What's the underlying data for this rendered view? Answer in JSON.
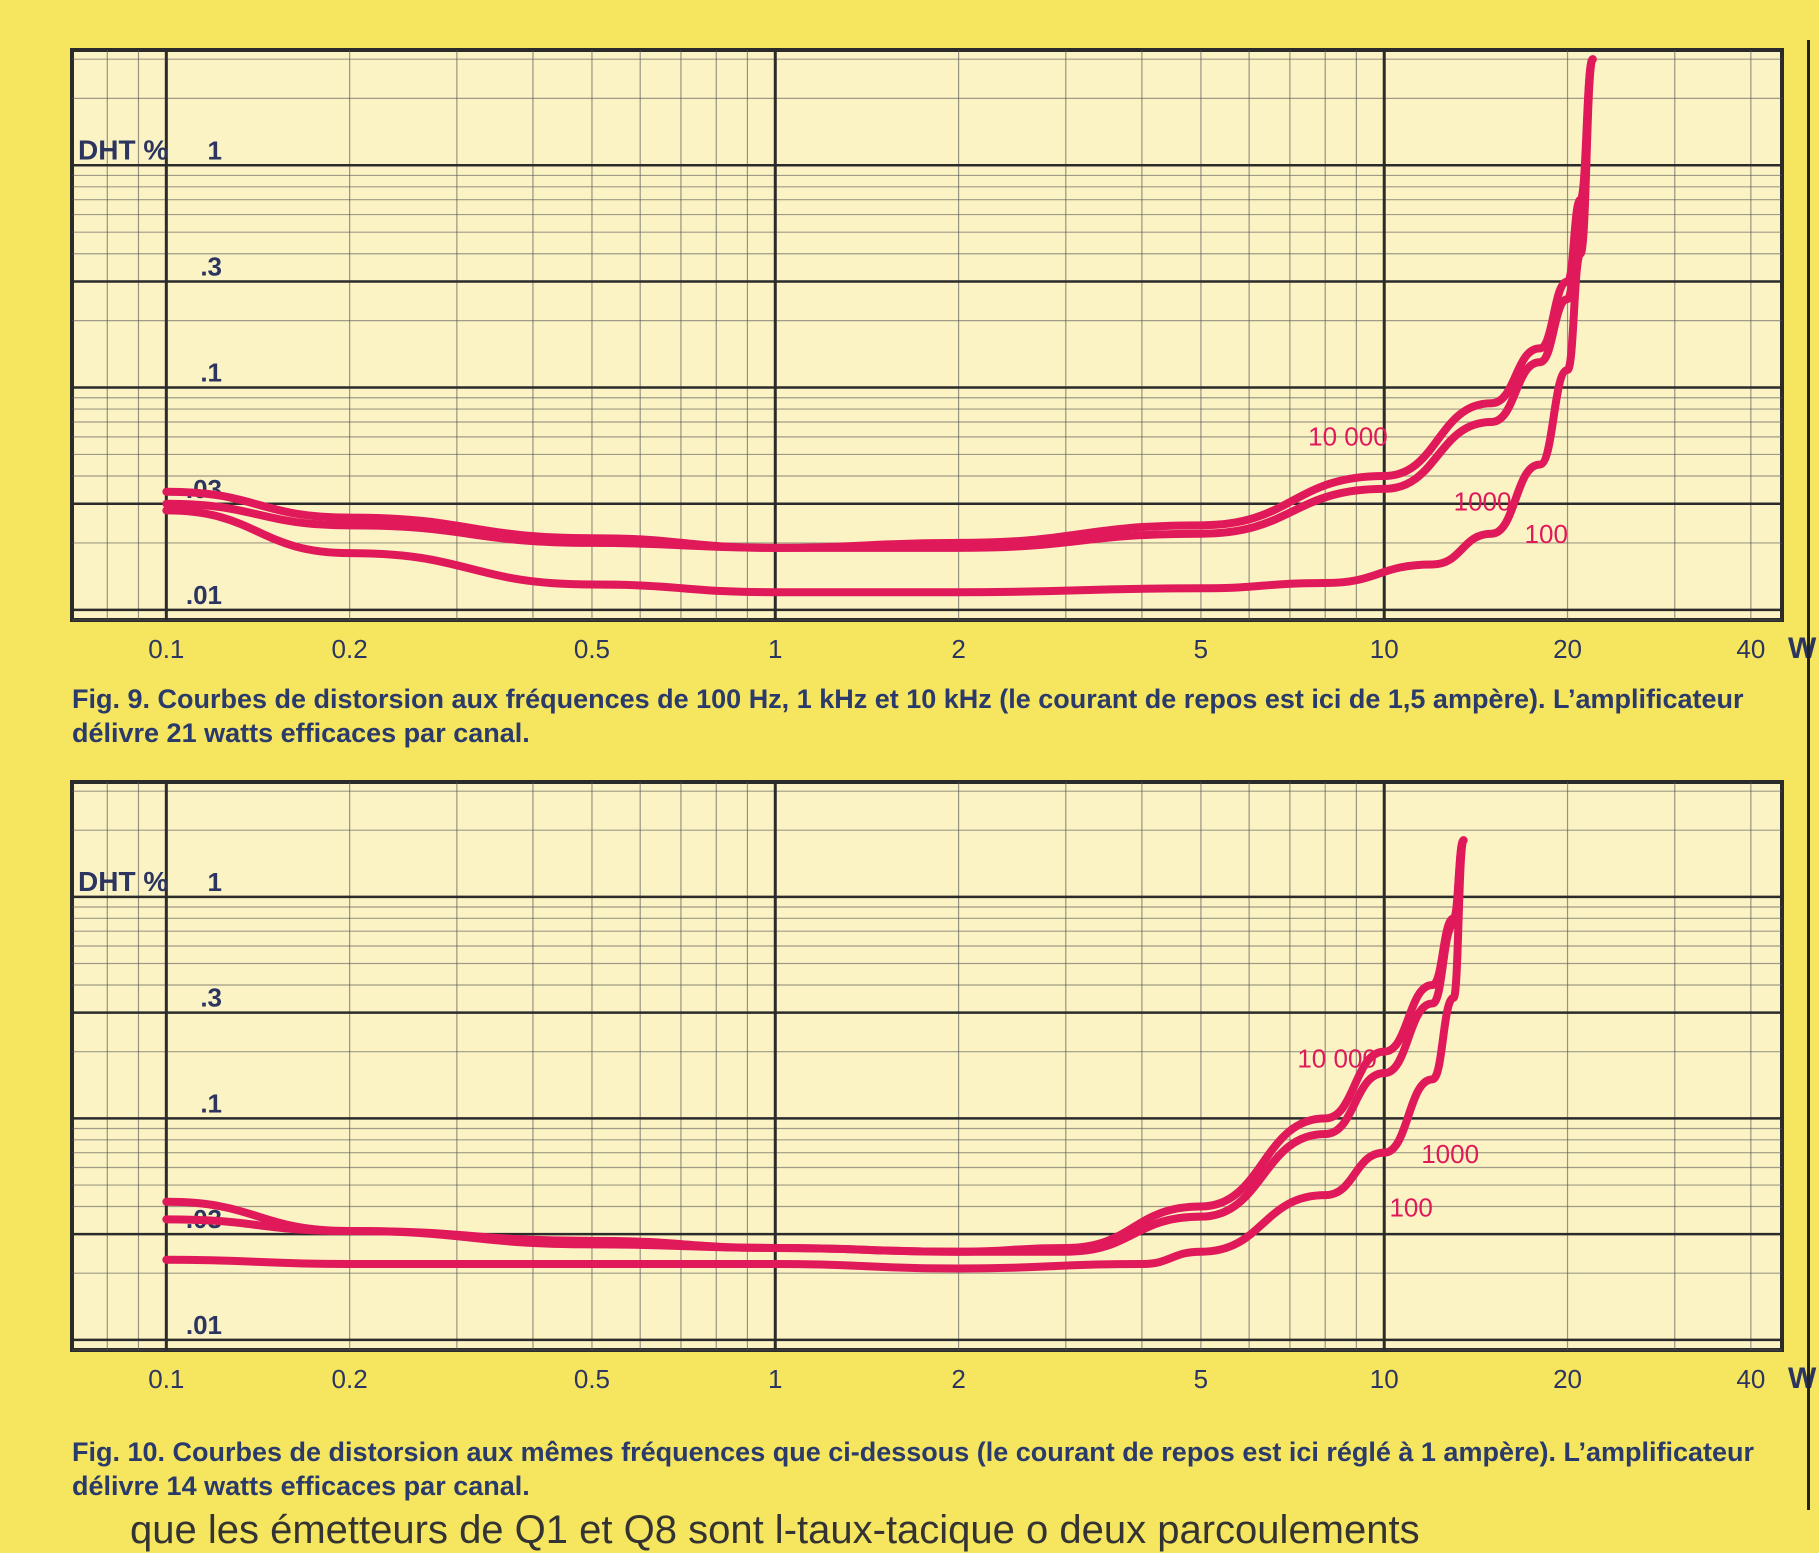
{
  "chart_data": [
    {
      "id": "fig9",
      "type": "line",
      "x_scale": "log",
      "y_scale": "log",
      "xlim": [
        0.07,
        45
      ],
      "ylim": [
        0.009,
        3.3
      ],
      "ylabel": "DHT %",
      "y_ticks": [
        {
          "v": 1,
          "label": "1"
        },
        {
          "v": 0.3,
          "label": ".3"
        },
        {
          "v": 0.1,
          "label": ".1"
        },
        {
          "v": 0.03,
          "label": ".03"
        },
        {
          "v": 0.01,
          "label": ".01"
        }
      ],
      "x_ticks": [
        {
          "v": 0.1,
          "label": "0.1"
        },
        {
          "v": 0.2,
          "label": "0.2"
        },
        {
          "v": 0.5,
          "label": "0.5"
        },
        {
          "v": 1,
          "label": "1"
        },
        {
          "v": 2,
          "label": "2"
        },
        {
          "v": 5,
          "label": "5"
        },
        {
          "v": 10,
          "label": "10"
        },
        {
          "v": 20,
          "label": "20"
        },
        {
          "v": 40,
          "label": "40"
        }
      ],
      "x_unit": "W",
      "series": [
        {
          "name": "10 000",
          "label_at": [
            7.5,
            0.055
          ],
          "points": [
            [
              0.1,
              0.034
            ],
            [
              0.2,
              0.026
            ],
            [
              0.5,
              0.021
            ],
            [
              1,
              0.019
            ],
            [
              2,
              0.02
            ],
            [
              5,
              0.024
            ],
            [
              10,
              0.04
            ],
            [
              15,
              0.085
            ],
            [
              18,
              0.15
            ],
            [
              20,
              0.3
            ],
            [
              21,
              0.7
            ],
            [
              22,
              3.0
            ]
          ]
        },
        {
          "name": "1000",
          "label_at": [
            13,
            0.028
          ],
          "points": [
            [
              0.1,
              0.03
            ],
            [
              0.2,
              0.024
            ],
            [
              0.5,
              0.02
            ],
            [
              1,
              0.019
            ],
            [
              2,
              0.019
            ],
            [
              5,
              0.022
            ],
            [
              10,
              0.035
            ],
            [
              15,
              0.07
            ],
            [
              18,
              0.13
            ],
            [
              20,
              0.25
            ],
            [
              21,
              0.6
            ],
            [
              22,
              3.0
            ]
          ]
        },
        {
          "name": "100",
          "label_at": [
            17,
            0.02
          ],
          "points": [
            [
              0.1,
              0.028
            ],
            [
              0.2,
              0.018
            ],
            [
              0.5,
              0.013
            ],
            [
              1,
              0.012
            ],
            [
              2,
              0.012
            ],
            [
              5,
              0.0125
            ],
            [
              8,
              0.0132
            ],
            [
              12,
              0.016
            ],
            [
              15,
              0.022
            ],
            [
              18,
              0.045
            ],
            [
              20,
              0.12
            ],
            [
              21,
              0.4
            ],
            [
              22,
              3.0
            ]
          ]
        }
      ]
    },
    {
      "id": "fig10",
      "type": "line",
      "x_scale": "log",
      "y_scale": "log",
      "xlim": [
        0.07,
        45
      ],
      "ylim": [
        0.009,
        3.3
      ],
      "ylabel": "DHT %",
      "y_ticks": [
        {
          "v": 1,
          "label": "1"
        },
        {
          "v": 0.3,
          "label": ".3"
        },
        {
          "v": 0.1,
          "label": ".1"
        },
        {
          "v": 0.03,
          "label": ".03"
        },
        {
          "v": 0.01,
          "label": ".01"
        }
      ],
      "x_ticks": [
        {
          "v": 0.1,
          "label": "0.1"
        },
        {
          "v": 0.2,
          "label": "0.2"
        },
        {
          "v": 0.5,
          "label": "0.5"
        },
        {
          "v": 1,
          "label": "1"
        },
        {
          "v": 2,
          "label": "2"
        },
        {
          "v": 5,
          "label": "5"
        },
        {
          "v": 10,
          "label": "10"
        },
        {
          "v": 20,
          "label": "20"
        },
        {
          "v": 40,
          "label": "40"
        }
      ],
      "x_unit": "W",
      "series": [
        {
          "name": "10 000",
          "label_at": [
            7.2,
            0.17
          ],
          "points": [
            [
              0.1,
              0.042
            ],
            [
              0.2,
              0.031
            ],
            [
              0.5,
              0.028
            ],
            [
              1,
              0.026
            ],
            [
              2,
              0.025
            ],
            [
              3,
              0.026
            ],
            [
              5,
              0.04
            ],
            [
              8,
              0.1
            ],
            [
              10,
              0.2
            ],
            [
              12,
              0.4
            ],
            [
              13,
              0.8
            ],
            [
              13.5,
              1.8
            ]
          ]
        },
        {
          "name": "1000",
          "label_at": [
            11.5,
            0.063
          ],
          "points": [
            [
              0.1,
              0.035
            ],
            [
              0.2,
              0.031
            ],
            [
              0.5,
              0.027
            ],
            [
              1,
              0.026
            ],
            [
              2,
              0.025
            ],
            [
              3,
              0.025
            ],
            [
              5,
              0.036
            ],
            [
              8,
              0.085
            ],
            [
              10,
              0.16
            ],
            [
              12,
              0.33
            ],
            [
              13,
              0.75
            ],
            [
              13.5,
              1.8
            ]
          ]
        },
        {
          "name": "100",
          "label_at": [
            10.2,
            0.036
          ],
          "points": [
            [
              0.1,
              0.023
            ],
            [
              0.2,
              0.022
            ],
            [
              0.5,
              0.022
            ],
            [
              1,
              0.022
            ],
            [
              2,
              0.021
            ],
            [
              4,
              0.022
            ],
            [
              5,
              0.025
            ],
            [
              8,
              0.045
            ],
            [
              10,
              0.07
            ],
            [
              12,
              0.15
            ],
            [
              13,
              0.35
            ],
            [
              13.5,
              1.8
            ]
          ]
        }
      ]
    }
  ],
  "captions": {
    "fig9": "Fig. 9. Courbes de distorsion aux fréquences de 100 Hz, 1 kHz et 10 kHz (le courant de repos est ici de 1,5 ampère). L’amplificateur délivre 21 watts efficaces par canal.",
    "fig10": "Fig. 10. Courbes de distorsion aux mêmes fréquences que ci-dessous (le courant de repos est ici réglé à 1 ampère). L’amplificateur délivre 14 watts efficaces par canal."
  },
  "body_fragment": "que les émetteurs de Q1 et Q8 sont l-taux-tacique o deux parcoulements"
}
